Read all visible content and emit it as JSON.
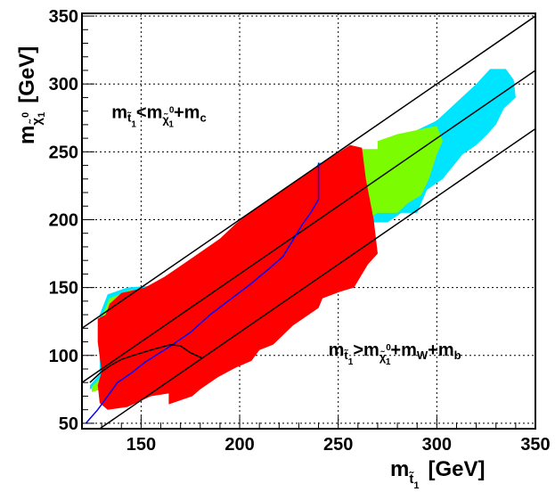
{
  "chart_data": {
    "type": "area",
    "title": "",
    "xlabel": {
      "main": "m",
      "sub": "t̃",
      "subsub": "1",
      "unit": "[GeV]"
    },
    "ylabel": {
      "main": "m",
      "sub": "χ̃",
      "sup": "0",
      "subsub": "1",
      "unit": "[GeV]"
    },
    "xlim": [
      120,
      350
    ],
    "ylim": [
      46,
      352
    ],
    "xticks": [
      150,
      200,
      250,
      300,
      350
    ],
    "yticks": [
      50,
      100,
      150,
      200,
      250,
      300,
      350
    ],
    "xtick_labels": [
      "150",
      "200",
      "250",
      "300",
      "350"
    ],
    "ytick_labels": [
      "50",
      "100",
      "150",
      "200",
      "250",
      "300",
      "350"
    ],
    "grid": true,
    "regions": [
      {
        "color": "#00e5ff",
        "points": [
          [
            240,
            242
          ],
          [
            270,
            242
          ],
          [
            270,
            252
          ],
          [
            300,
            273
          ],
          [
            320,
            300
          ],
          [
            327,
            311
          ],
          [
            335,
            311
          ],
          [
            339,
            303
          ],
          [
            340,
            290
          ],
          [
            334,
            282
          ],
          [
            330,
            270
          ],
          [
            325,
            262
          ],
          [
            320,
            255
          ],
          [
            313,
            248
          ],
          [
            303,
            230
          ],
          [
            295,
            222
          ],
          [
            290,
            205
          ],
          [
            282,
            205
          ],
          [
            275,
            198
          ],
          [
            265,
            198
          ],
          [
            258,
            188
          ],
          [
            250,
            173
          ],
          [
            240,
            173
          ],
          [
            235,
            162
          ],
          [
            225,
            162
          ],
          [
            218,
            158
          ],
          [
            208,
            153
          ],
          [
            203,
            142
          ],
          [
            193,
            140
          ],
          [
            185,
            134
          ],
          [
            183,
            125
          ],
          [
            175,
            120
          ],
          [
            165,
            116
          ],
          [
            160,
            112
          ],
          [
            145,
            96
          ],
          [
            135,
            80
          ],
          [
            124,
            75
          ],
          [
            124,
            78
          ],
          [
            129,
            86
          ],
          [
            129,
            130
          ],
          [
            133,
            145
          ],
          [
            143,
            150
          ],
          [
            160,
            152
          ],
          [
            170,
            162
          ],
          [
            180,
            172
          ],
          [
            190,
            180
          ],
          [
            206,
            188
          ],
          [
            206,
            196
          ],
          [
            215,
            206
          ],
          [
            225,
            216
          ],
          [
            233,
            226
          ]
        ]
      },
      {
        "color": "#7cfc00",
        "points": [
          [
            240,
            240
          ],
          [
            258,
            252
          ],
          [
            270,
            252
          ],
          [
            270,
            258
          ],
          [
            280,
            263
          ],
          [
            300,
            269
          ],
          [
            303,
            258
          ],
          [
            300,
            248
          ],
          [
            296,
            230
          ],
          [
            292,
            218
          ],
          [
            285,
            212
          ],
          [
            280,
            205
          ],
          [
            270,
            205
          ],
          [
            262,
            198
          ],
          [
            254,
            185
          ],
          [
            245,
            173
          ],
          [
            238,
            168
          ],
          [
            232,
            161
          ],
          [
            222,
            160
          ],
          [
            212,
            155
          ],
          [
            206,
            148
          ],
          [
            200,
            140
          ],
          [
            192,
            138
          ],
          [
            185,
            130
          ],
          [
            183,
            123
          ],
          [
            176,
            118
          ],
          [
            165,
            113
          ],
          [
            158,
            108
          ],
          [
            148,
            92
          ],
          [
            137,
            78
          ],
          [
            125,
            73
          ],
          [
            125,
            77
          ],
          [
            130,
            84
          ],
          [
            130,
            128
          ],
          [
            134,
            142
          ],
          [
            144,
            148
          ],
          [
            160,
            150
          ],
          [
            170,
            160
          ],
          [
            180,
            170
          ],
          [
            190,
            178
          ],
          [
            207,
            186
          ],
          [
            207,
            195
          ],
          [
            215,
            204
          ],
          [
            225,
            214
          ],
          [
            233,
            224
          ]
        ]
      },
      {
        "color": "#ff0000",
        "points": [
          [
            130,
            88
          ],
          [
            128,
            78
          ],
          [
            129,
            65
          ],
          [
            133,
            60
          ],
          [
            143,
            62
          ],
          [
            155,
            70
          ],
          [
            164,
            72
          ],
          [
            164,
            64
          ],
          [
            176,
            70
          ],
          [
            180,
            75
          ],
          [
            189,
            84
          ],
          [
            198,
            91
          ],
          [
            206,
            96
          ],
          [
            210,
            104
          ],
          [
            217,
            108
          ],
          [
            227,
            122
          ],
          [
            240,
            135
          ],
          [
            242,
            142
          ],
          [
            251,
            147
          ],
          [
            258,
            150
          ],
          [
            265,
            167
          ],
          [
            270,
            175
          ],
          [
            268,
            200
          ],
          [
            264,
            230
          ],
          [
            262,
            253
          ],
          [
            256,
            255
          ],
          [
            240,
            240
          ],
          [
            232,
            232
          ],
          [
            225,
            225
          ],
          [
            218,
            218
          ],
          [
            210,
            210
          ],
          [
            205,
            205
          ],
          [
            198,
            197
          ],
          [
            190,
            186
          ],
          [
            182,
            178
          ],
          [
            172,
            168
          ],
          [
            162,
            158
          ],
          [
            152,
            150
          ],
          [
            140,
            146
          ],
          [
            134,
            138
          ],
          [
            132,
            130
          ],
          [
            128,
            127
          ],
          [
            128,
            110
          ]
        ]
      }
    ],
    "series": [
      {
        "color": "#0000ff",
        "x": [
          122,
          128,
          133,
          138,
          145,
          152,
          165,
          175,
          185,
          195,
          205,
          215,
          222,
          227,
          232,
          236,
          240,
          240
        ],
        "y": [
          50,
          60,
          70,
          80,
          87,
          95,
          107,
          117,
          130,
          141,
          152,
          164,
          173,
          185,
          197,
          205,
          215,
          242
        ]
      },
      {
        "color": "#000000",
        "x": [
          124,
          127,
          130,
          135,
          140,
          146,
          155,
          165,
          170,
          175,
          181
        ],
        "y": [
          80,
          84,
          88,
          93,
          97,
          100,
          104,
          108,
          107,
          102,
          98
        ]
      }
    ],
    "boundary_lines": [
      {
        "color": "#000000",
        "x": [
          120,
          350
        ],
        "y": [
          120,
          350
        ]
      },
      {
        "color": "#000000",
        "x": [
          120,
          350
        ],
        "y": [
          80,
          310
        ]
      },
      {
        "color": "#000000",
        "x": [
          120,
          350
        ],
        "y": [
          37,
          267
        ]
      }
    ],
    "annotations": [
      {
        "main": "m",
        "sub": "t̃",
        "subsub": "1",
        "rest": "<m",
        "sub2": "χ̃",
        "sup2": "0",
        "subsub2": "1",
        "tail": "+m",
        "tailsub": "c",
        "x": 135,
        "y": 275
      },
      {
        "main": "m",
        "sub": "t̃",
        "subsub": "1",
        "rest": ">m",
        "sub2": "χ̃",
        "sup2": "0",
        "subsub2": "1",
        "tail": "+m",
        "tailsub": "W",
        "tail2": "+m",
        "tail2sub": "b",
        "x": 245,
        "y": 100
      }
    ]
  }
}
